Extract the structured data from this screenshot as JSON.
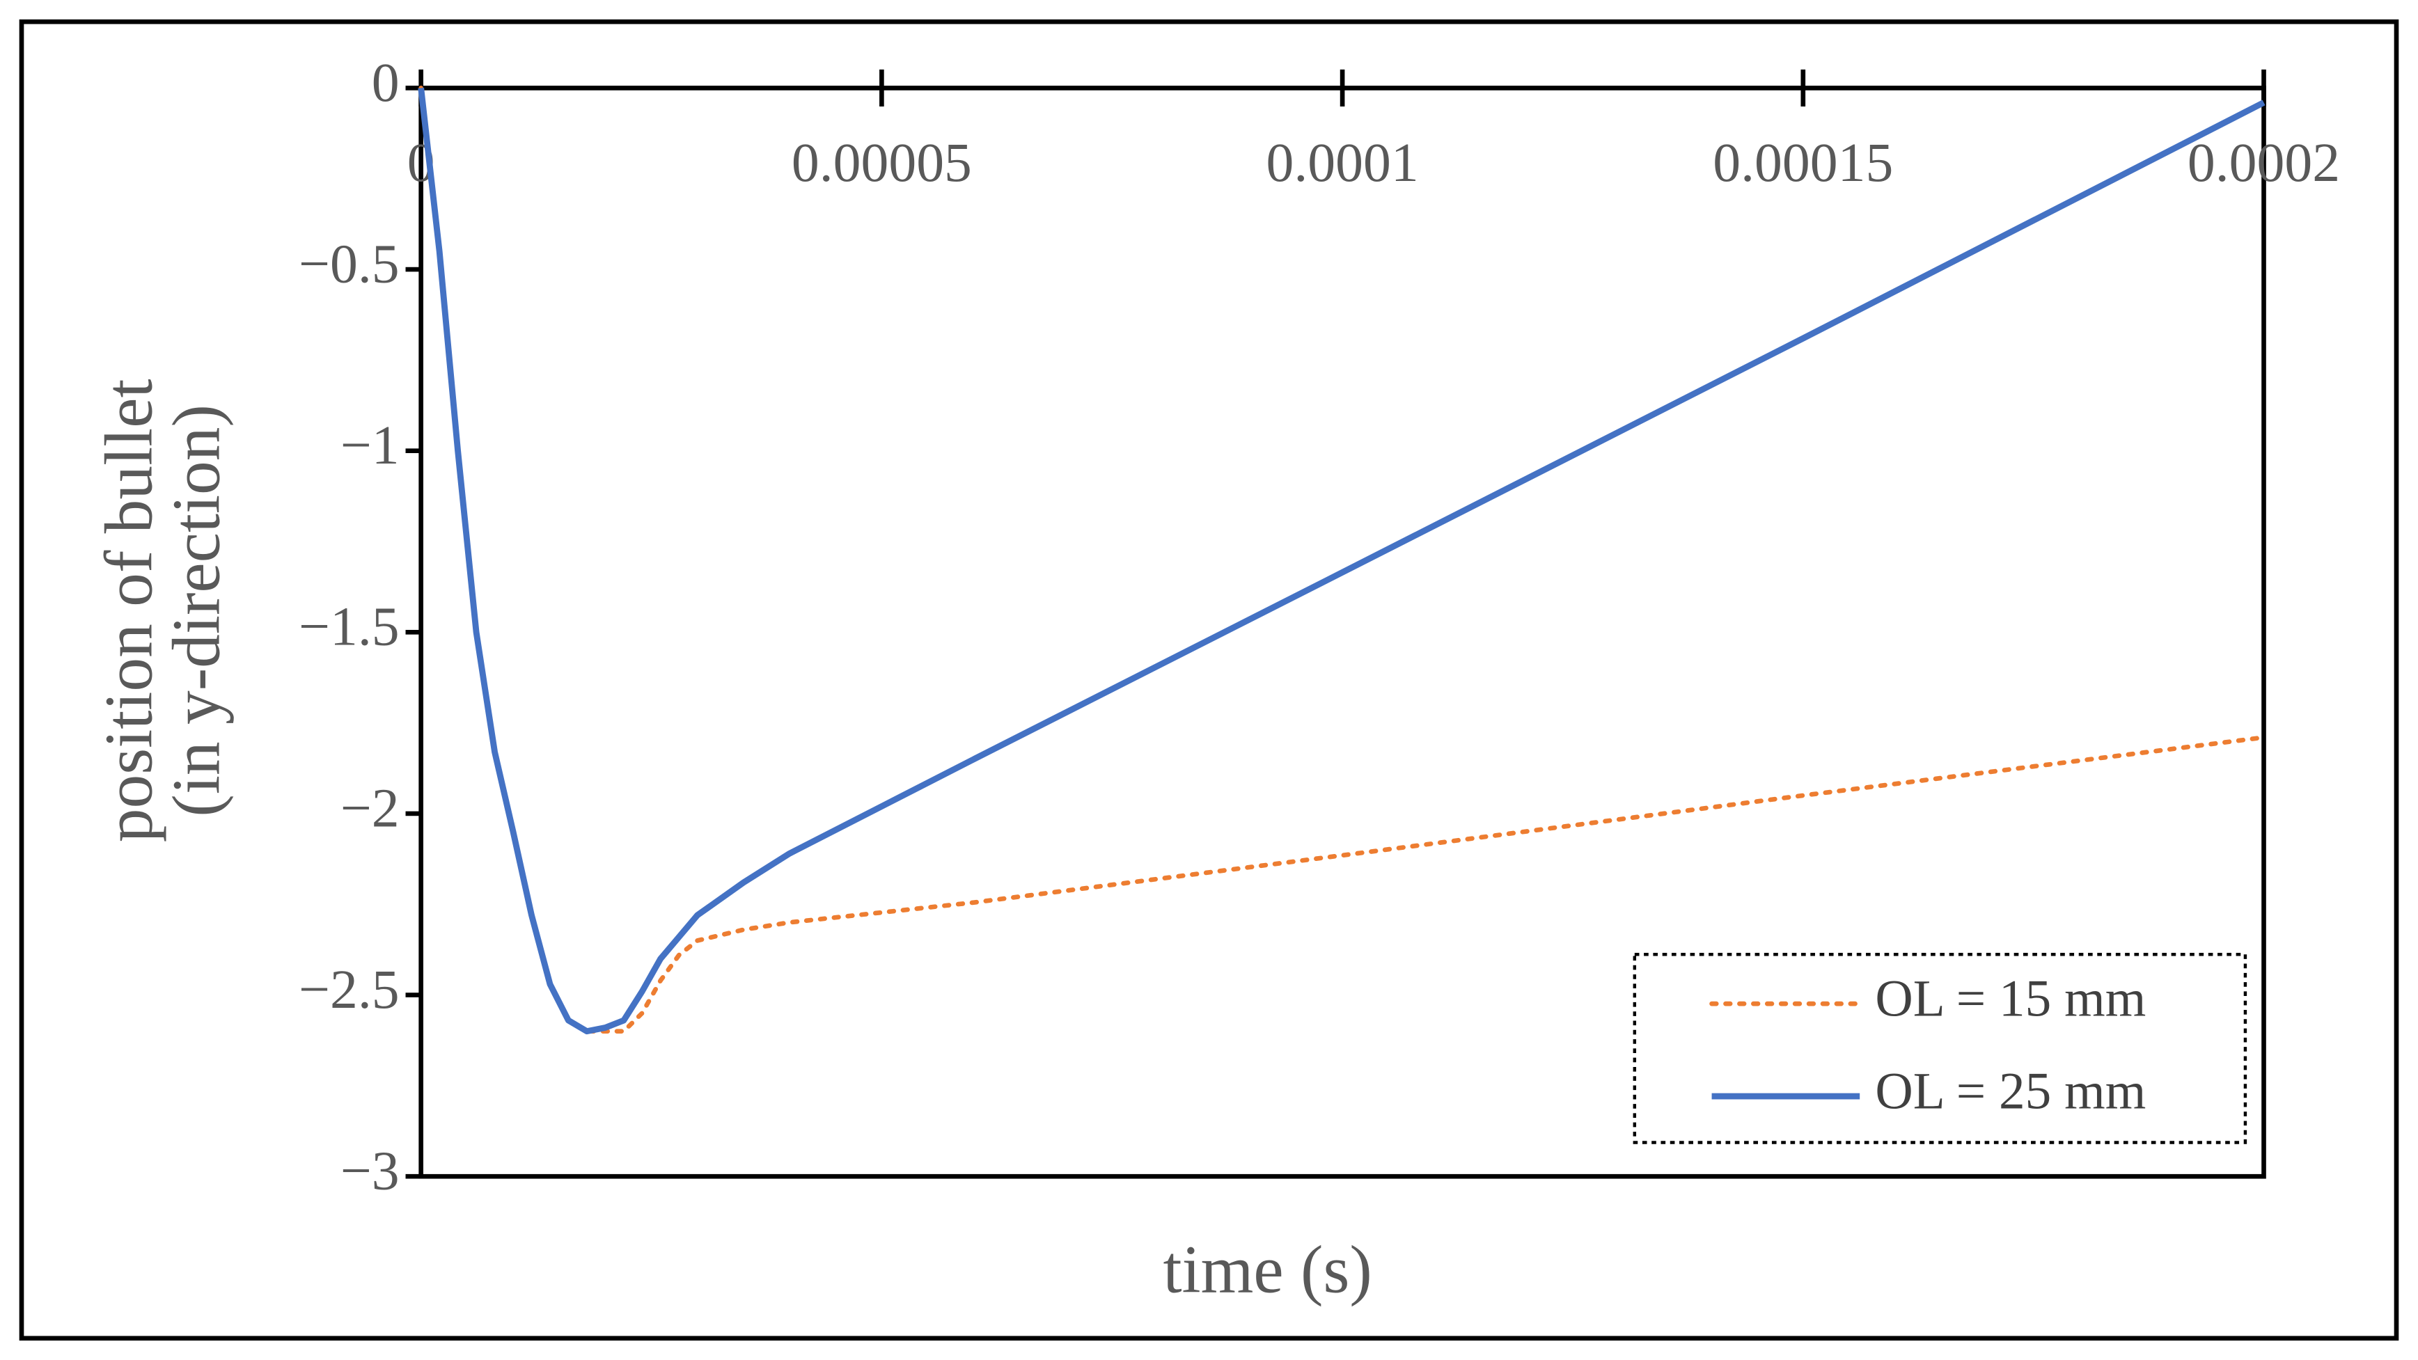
{
  "chart_data": {
    "type": "line",
    "xlabel": "time (s)",
    "ylabel": [
      "position of bullet",
      "(in y-direction)"
    ],
    "x": [
      0,
      2e-06,
      4e-06,
      6e-06,
      8e-06,
      1e-05,
      1.2e-05,
      1.4e-05,
      1.6e-05,
      1.8e-05,
      2e-05,
      2.2e-05,
      2.4e-05,
      2.6e-05,
      2.8e-05,
      3e-05,
      3.5e-05,
      4e-05,
      6e-05,
      0.0001,
      0.00015,
      0.0002
    ],
    "series": [
      {
        "name": "OL = 15 mm",
        "color": "#ed7d31",
        "style": "dotted",
        "values": [
          0,
          -0.45,
          -1.0,
          -1.5,
          -1.83,
          -2.05,
          -2.28,
          -2.47,
          -2.57,
          -2.6,
          -2.6,
          -2.6,
          -2.55,
          -2.46,
          -2.39,
          -2.35,
          -2.32,
          -2.3,
          -2.245,
          -2.115,
          -1.95,
          -1.79
        ]
      },
      {
        "name": "OL = 25 mm",
        "color": "#4472c4",
        "style": "solid",
        "values": [
          0,
          -0.45,
          -1.0,
          -1.5,
          -1.83,
          -2.05,
          -2.28,
          -2.47,
          -2.57,
          -2.6,
          -2.59,
          -2.57,
          -2.49,
          -2.4,
          -2.34,
          -2.28,
          -2.19,
          -2.11,
          -1.85,
          -1.335,
          -0.69,
          -0.04
        ]
      }
    ],
    "xlim": [
      0,
      0.0002
    ],
    "xticks": [
      0,
      5e-05,
      0.0001,
      0.00015,
      0.0002
    ],
    "ylim": [
      -3,
      0
    ],
    "yticks": [
      0,
      {
        "value": -0.5,
        "label": "−0.5"
      },
      {
        "value": -1,
        "label": "−1"
      },
      {
        "value": -1.5,
        "label": "−1.5"
      },
      {
        "value": -2,
        "label": "−2"
      },
      {
        "value": -2.5,
        "label": "−2.5"
      },
      {
        "value": -3,
        "label": "−3"
      }
    ],
    "legend": "lower right"
  }
}
